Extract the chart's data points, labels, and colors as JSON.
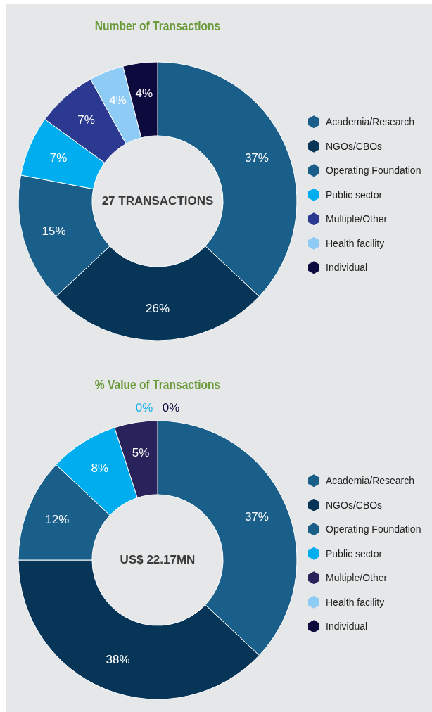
{
  "chart_data": [
    {
      "type": "donut",
      "title": "Number of Transactions",
      "categories": [
        "Academia/Research",
        "NGOs/CBOs",
        "Operating Foundation",
        "Public sector",
        "Multiple/Other",
        "Health facility",
        "Individual"
      ],
      "values": [
        37,
        26,
        15,
        7,
        7,
        4,
        4
      ],
      "colors": [
        "#1a5e8a",
        "#073558",
        "#1a5e8a",
        "#00aeef",
        "#2b3990",
        "#8ecbf5",
        "#0d0a3e"
      ],
      "value_labels": [
        "37%",
        "26%",
        "15%",
        "7%",
        "7%",
        "4%",
        "4%"
      ],
      "legend": "right",
      "annotations": [
        "27 TRANSACTIONS"
      ]
    },
    {
      "type": "donut",
      "title": "% Value of Transactions",
      "categories": [
        "Academia/Research",
        "NGOs/CBOs",
        "Operating Foundation",
        "Public sector",
        "Multiple/Other",
        "Health facility",
        "Individual"
      ],
      "values": [
        37,
        38,
        12,
        8,
        5,
        0,
        0
      ],
      "colors": [
        "#1a5e8a",
        "#073558",
        "#1a5e8a",
        "#00aeef",
        "#29235c",
        "#8ecbf5",
        "#0d0a3e"
      ],
      "value_labels": [
        "37%",
        "38%",
        "12%",
        "8%",
        "5%",
        "0%",
        "0%"
      ],
      "legend": "right",
      "annotations": [
        "US$ 22.17MN"
      ]
    }
  ]
}
